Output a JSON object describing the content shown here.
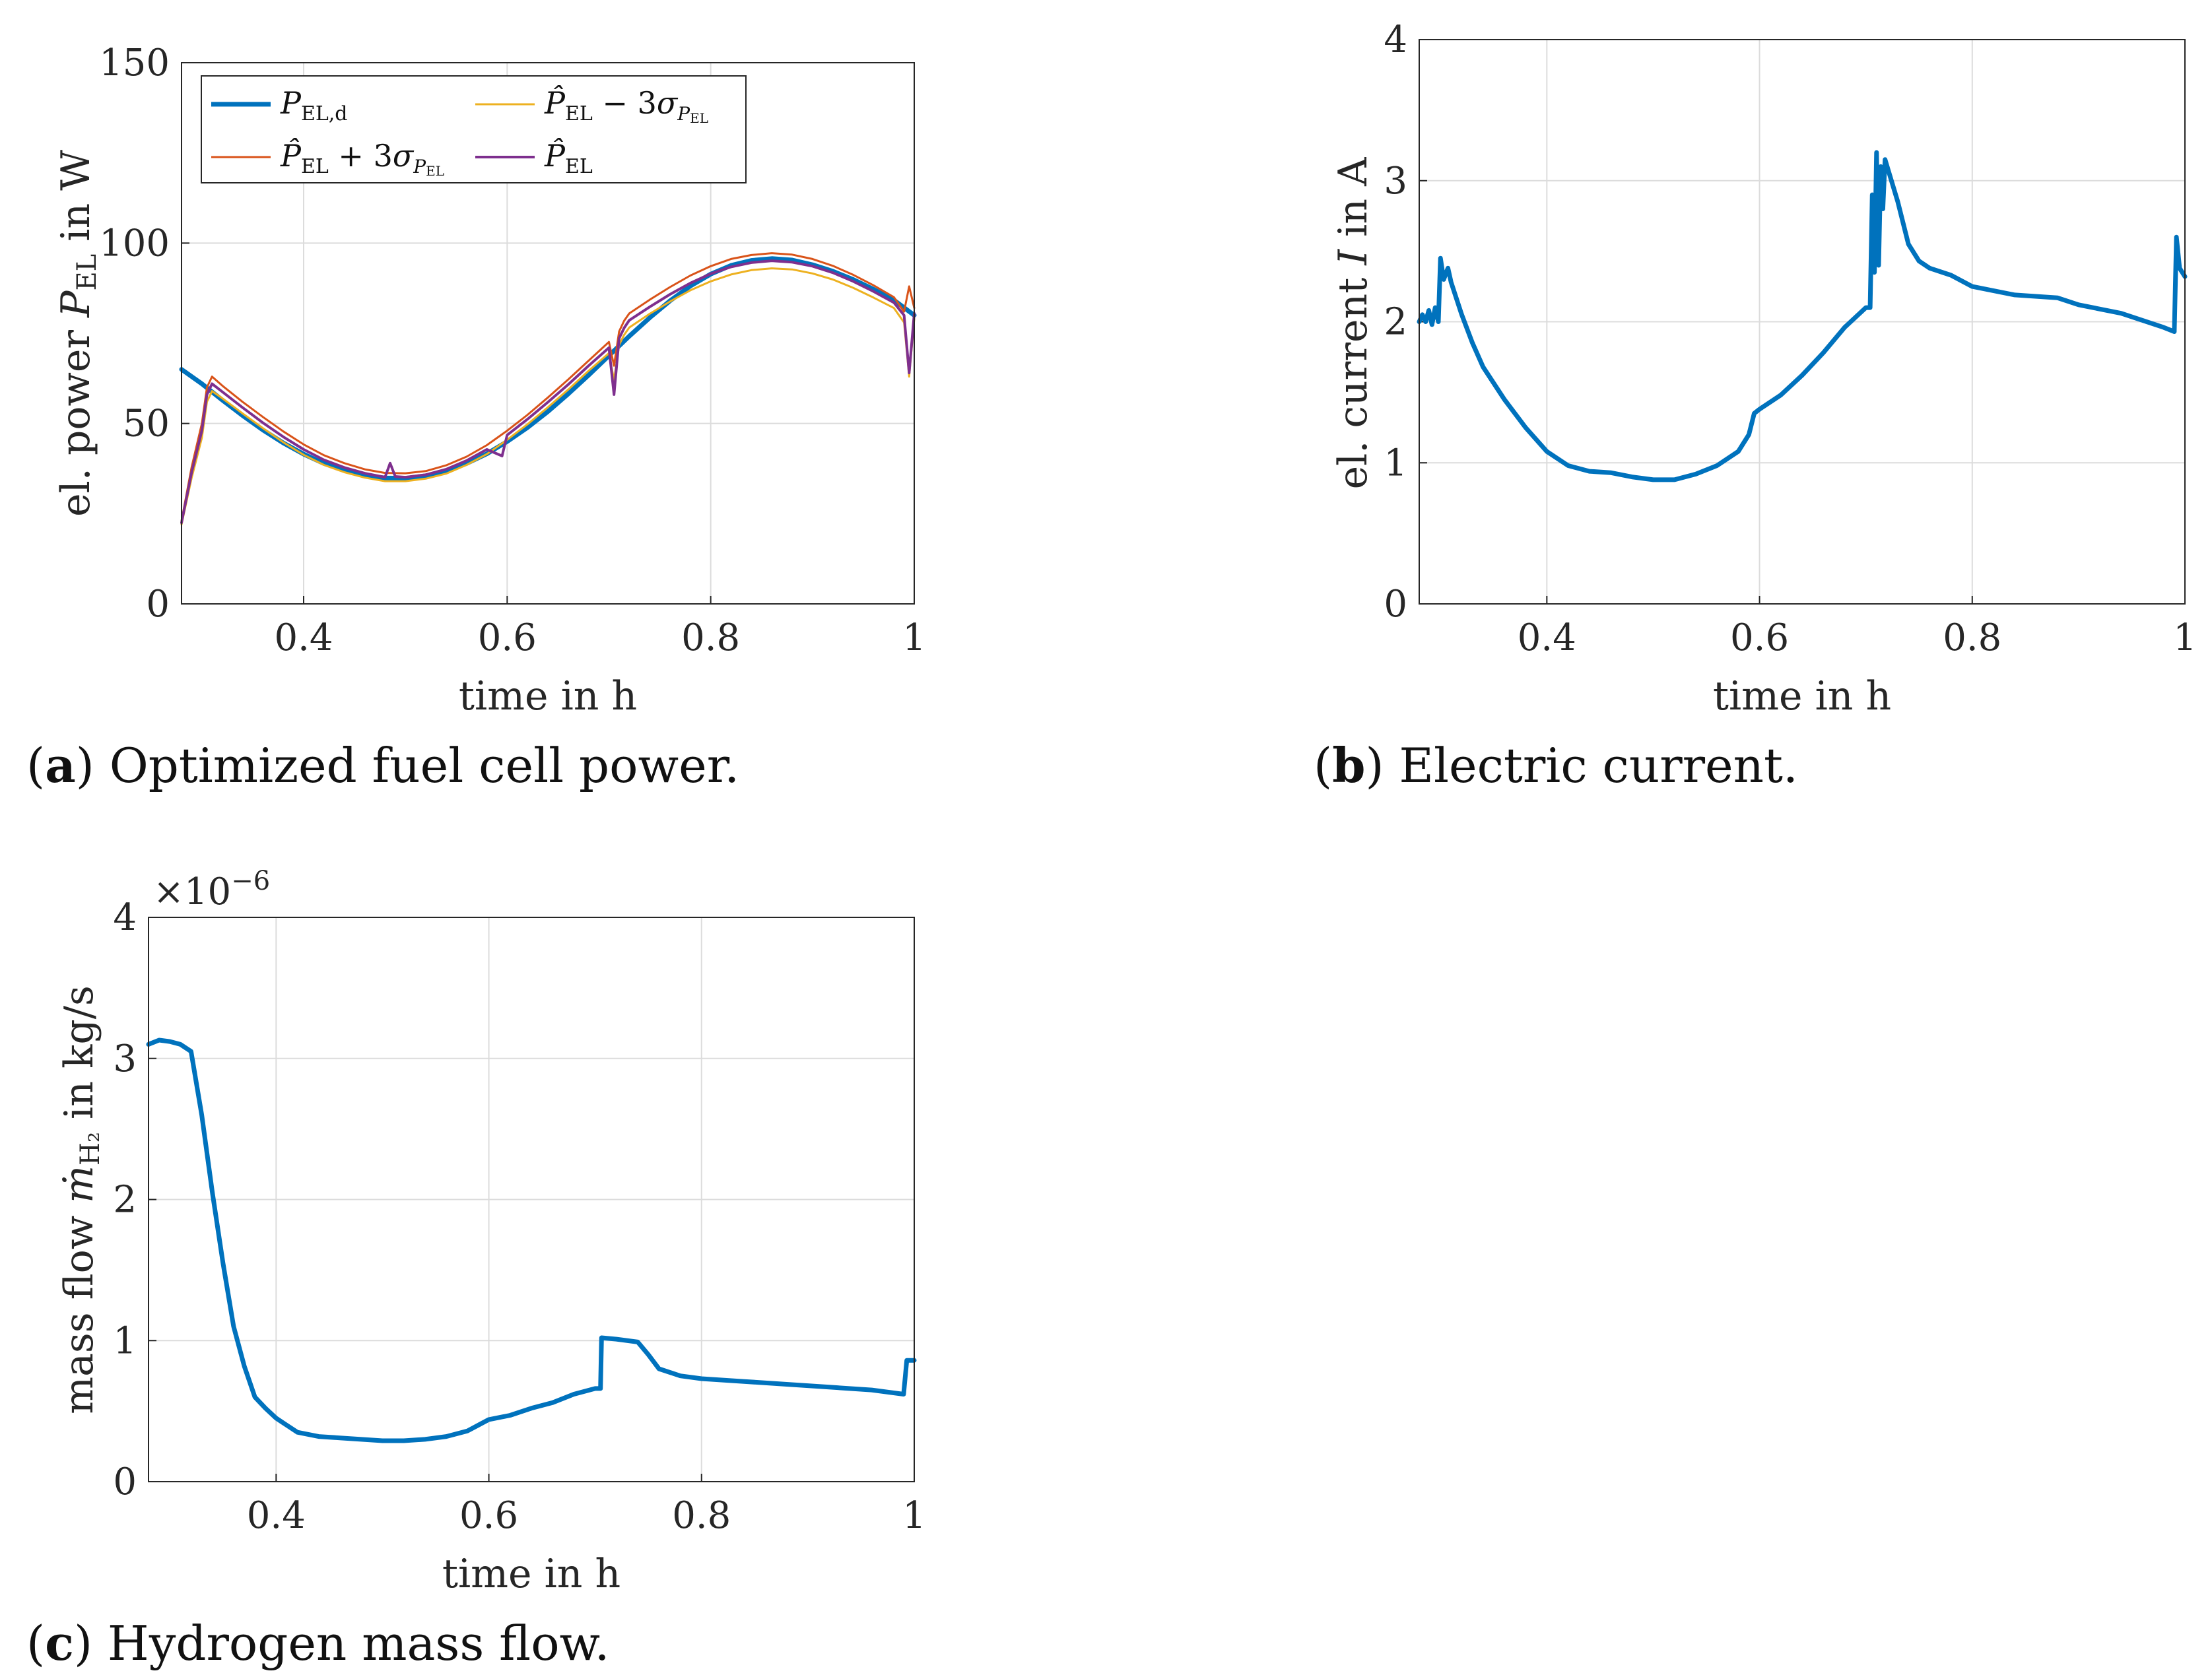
{
  "colors": {
    "blue": "#0072BD",
    "orange": "#D95319",
    "yellow": "#EDB120",
    "purple": "#7E2F8E"
  },
  "chart_data": [
    {
      "id": "a",
      "type": "line",
      "title": "",
      "caption_letter": "a",
      "caption_text": ") Optimized fuel cell power.",
      "xlabel": "time in h",
      "ylabel": "el. power P_EL in W",
      "xlim": [
        0.28,
        1.0
      ],
      "ylim": [
        0,
        150
      ],
      "xticks": [
        "0.4",
        "0.6",
        "0.8",
        "1"
      ],
      "xtick_values": [
        0.4,
        0.6,
        0.8,
        1.0
      ],
      "yticks": [
        "0",
        "50",
        "100",
        "150"
      ],
      "ytick_values": [
        0,
        50,
        100,
        150
      ],
      "grid": true,
      "legend": {
        "placement": "top-left",
        "entries": [
          {
            "label": "P_EL,d",
            "color": "blue"
          },
          {
            "label": "P̂_EL − 3σ_PEL",
            "color": "yellow"
          },
          {
            "label": "P̂_EL + 3σ_PEL",
            "color": "orange"
          },
          {
            "label": "P̂_EL",
            "color": "purple"
          }
        ]
      },
      "series": [
        {
          "name": "P_EL,d",
          "color": "blue",
          "width": 7,
          "x": [
            0.28,
            0.3,
            0.32,
            0.34,
            0.36,
            0.38,
            0.4,
            0.42,
            0.44,
            0.46,
            0.48,
            0.5,
            0.52,
            0.54,
            0.56,
            0.58,
            0.6,
            0.62,
            0.64,
            0.66,
            0.68,
            0.7,
            0.72,
            0.74,
            0.76,
            0.78,
            0.8,
            0.82,
            0.84,
            0.86,
            0.88,
            0.9,
            0.92,
            0.94,
            0.96,
            0.98,
            1.0
          ],
          "y": [
            65,
            61,
            56.5,
            52.2,
            48.2,
            44.6,
            41.5,
            38.9,
            37,
            35.6,
            34.9,
            34.8,
            35.5,
            36.8,
            38.9,
            41.6,
            45,
            48.9,
            53.3,
            58.2,
            63.4,
            68.8,
            74.2,
            79.3,
            84,
            88.1,
            91.4,
            93.8,
            95.2,
            95.7,
            95.3,
            94,
            92.2,
            89.9,
            87.2,
            84.2,
            80
          ]
        },
        {
          "name": "P̂_EL + 3σ_PEL",
          "color": "orange",
          "width": 3,
          "x": [
            0.28,
            0.29,
            0.3,
            0.305,
            0.31,
            0.32,
            0.34,
            0.36,
            0.38,
            0.4,
            0.42,
            0.44,
            0.46,
            0.48,
            0.5,
            0.52,
            0.54,
            0.56,
            0.58,
            0.6,
            0.62,
            0.64,
            0.66,
            0.68,
            0.7,
            0.705,
            0.71,
            0.715,
            0.72,
            0.74,
            0.76,
            0.78,
            0.8,
            0.82,
            0.84,
            0.86,
            0.88,
            0.9,
            0.92,
            0.94,
            0.96,
            0.98,
            0.99,
            0.995,
            1.0
          ],
          "y": [
            23,
            38,
            50,
            60,
            63,
            60.5,
            56,
            51.8,
            47.8,
            44.2,
            41.2,
            39,
            37.3,
            36.3,
            36.2,
            36.8,
            38.4,
            40.8,
            44,
            48,
            52.4,
            57.2,
            62.2,
            67.4,
            72.6,
            66,
            75.5,
            78.5,
            80.5,
            84.3,
            87.8,
            91,
            93.6,
            95.6,
            96.7,
            97.2,
            96.8,
            95.6,
            93.7,
            91.2,
            88.3,
            85,
            81,
            88,
            82
          ]
        },
        {
          "name": "P̂_EL − 3σ_PEL",
          "color": "yellow",
          "width": 3,
          "x": [
            0.28,
            0.29,
            0.3,
            0.305,
            0.31,
            0.32,
            0.34,
            0.36,
            0.38,
            0.4,
            0.42,
            0.44,
            0.46,
            0.48,
            0.5,
            0.52,
            0.54,
            0.56,
            0.58,
            0.6,
            0.62,
            0.64,
            0.66,
            0.68,
            0.7,
            0.705,
            0.71,
            0.715,
            0.72,
            0.74,
            0.76,
            0.78,
            0.8,
            0.82,
            0.84,
            0.86,
            0.88,
            0.9,
            0.92,
            0.94,
            0.96,
            0.98,
            0.99,
            0.995,
            1.0
          ],
          "y": [
            22,
            35,
            46,
            56,
            59,
            57,
            52.8,
            48.7,
            44.8,
            41.3,
            38.5,
            36.5,
            35,
            34,
            34,
            34.7,
            36.1,
            38.5,
            41.5,
            45.5,
            49.8,
            54.5,
            59.4,
            64.6,
            69.5,
            62,
            71.8,
            74.6,
            76.6,
            80.4,
            83.8,
            86.9,
            89.4,
            91.3,
            92.5,
            93,
            92.7,
            91.6,
            89.9,
            87.6,
            84.9,
            82,
            78,
            63,
            79
          ]
        },
        {
          "name": "P̂_EL",
          "color": "purple",
          "width": 4,
          "x": [
            0.28,
            0.29,
            0.3,
            0.305,
            0.31,
            0.32,
            0.34,
            0.36,
            0.38,
            0.4,
            0.42,
            0.44,
            0.46,
            0.48,
            0.485,
            0.49,
            0.5,
            0.52,
            0.54,
            0.56,
            0.58,
            0.595,
            0.6,
            0.62,
            0.64,
            0.66,
            0.68,
            0.7,
            0.705,
            0.71,
            0.715,
            0.72,
            0.74,
            0.76,
            0.78,
            0.8,
            0.82,
            0.84,
            0.86,
            0.88,
            0.9,
            0.92,
            0.94,
            0.96,
            0.98,
            0.99,
            0.995,
            1.0
          ],
          "y": [
            22.5,
            36.5,
            48,
            58,
            61,
            58.8,
            54.4,
            50.2,
            46.3,
            42.8,
            39.9,
            37.8,
            36.2,
            35.1,
            39,
            35.3,
            35.1,
            35.8,
            37.3,
            39.7,
            42.8,
            41,
            46.8,
            51.2,
            55.9,
            60.8,
            66,
            71,
            58,
            73.6,
            76.5,
            78.6,
            82.3,
            85.8,
            88.9,
            91.5,
            93.4,
            94.6,
            95.1,
            94.7,
            93.6,
            91.8,
            89.4,
            86.6,
            83.5,
            80,
            64,
            80.5
          ]
        }
      ]
    },
    {
      "id": "b",
      "type": "line",
      "title": "",
      "caption_letter": "b",
      "caption_text": ") Electric current.",
      "xlabel": "time in h",
      "ylabel": "el. current I in A",
      "xlim": [
        0.28,
        1.0
      ],
      "ylim": [
        0,
        4
      ],
      "xticks": [
        "0.4",
        "0.6",
        "0.8",
        "1"
      ],
      "xtick_values": [
        0.4,
        0.6,
        0.8,
        1.0
      ],
      "yticks": [
        "0",
        "1",
        "2",
        "3",
        "4"
      ],
      "ytick_values": [
        0,
        1,
        2,
        3,
        4
      ],
      "grid": true,
      "series": [
        {
          "name": "I",
          "color": "blue",
          "width": 7,
          "x": [
            0.28,
            0.283,
            0.286,
            0.289,
            0.292,
            0.295,
            0.298,
            0.3,
            0.303,
            0.307,
            0.31,
            0.32,
            0.33,
            0.34,
            0.36,
            0.38,
            0.4,
            0.42,
            0.44,
            0.46,
            0.48,
            0.5,
            0.52,
            0.54,
            0.56,
            0.58,
            0.59,
            0.595,
            0.6,
            0.62,
            0.64,
            0.66,
            0.68,
            0.7,
            0.704,
            0.706,
            0.708,
            0.71,
            0.712,
            0.714,
            0.716,
            0.718,
            0.72,
            0.73,
            0.74,
            0.75,
            0.76,
            0.78,
            0.8,
            0.84,
            0.88,
            0.9,
            0.94,
            0.98,
            0.99,
            0.992,
            0.995,
            1.0
          ],
          "y": [
            2.0,
            2.05,
            2.0,
            2.08,
            1.98,
            2.1,
            2.0,
            2.45,
            2.3,
            2.38,
            2.28,
            2.05,
            1.85,
            1.68,
            1.45,
            1.25,
            1.08,
            0.98,
            0.94,
            0.93,
            0.9,
            0.88,
            0.88,
            0.92,
            0.98,
            1.08,
            1.2,
            1.35,
            1.38,
            1.48,
            1.62,
            1.78,
            1.96,
            2.1,
            2.1,
            2.9,
            2.35,
            3.2,
            2.4,
            3.1,
            2.8,
            3.15,
            3.1,
            2.85,
            2.55,
            2.43,
            2.38,
            2.33,
            2.25,
            2.19,
            2.17,
            2.12,
            2.06,
            1.96,
            1.93,
            2.6,
            2.38,
            2.32
          ]
        }
      ]
    },
    {
      "id": "c",
      "type": "line",
      "title": "",
      "caption_letter": "c",
      "caption_text": ") Hydrogen mass flow.",
      "xlabel": "time in h",
      "ylabel": "mass flow ṁ_H2 in kg/s",
      "multiplier": "×10",
      "multiplier_exp": "−6",
      "xlim": [
        0.28,
        1.0
      ],
      "ylim": [
        0,
        4
      ],
      "xticks": [
        "0.4",
        "0.6",
        "0.8",
        "1"
      ],
      "xtick_values": [
        0.4,
        0.6,
        0.8,
        1.0
      ],
      "yticks": [
        "0",
        "1",
        "2",
        "3",
        "4"
      ],
      "ytick_values": [
        0,
        1,
        2,
        3,
        4
      ],
      "grid": true,
      "series": [
        {
          "name": "m_H2",
          "color": "blue",
          "width": 7,
          "x": [
            0.28,
            0.29,
            0.3,
            0.31,
            0.32,
            0.33,
            0.34,
            0.35,
            0.36,
            0.37,
            0.38,
            0.39,
            0.4,
            0.41,
            0.42,
            0.44,
            0.46,
            0.48,
            0.5,
            0.52,
            0.54,
            0.56,
            0.58,
            0.59,
            0.6,
            0.62,
            0.64,
            0.66,
            0.68,
            0.7,
            0.705,
            0.706,
            0.72,
            0.74,
            0.75,
            0.76,
            0.78,
            0.8,
            0.84,
            0.88,
            0.92,
            0.96,
            0.99,
            0.993,
            1.0
          ],
          "y": [
            3.1,
            3.13,
            3.12,
            3.1,
            3.05,
            2.6,
            2.05,
            1.55,
            1.1,
            0.82,
            0.6,
            0.52,
            0.45,
            0.4,
            0.35,
            0.32,
            0.31,
            0.3,
            0.29,
            0.29,
            0.3,
            0.32,
            0.36,
            0.4,
            0.44,
            0.47,
            0.52,
            0.56,
            0.62,
            0.66,
            0.66,
            1.02,
            1.01,
            0.99,
            0.9,
            0.8,
            0.75,
            0.73,
            0.71,
            0.69,
            0.67,
            0.65,
            0.62,
            0.86,
            0.86
          ]
        }
      ]
    }
  ]
}
